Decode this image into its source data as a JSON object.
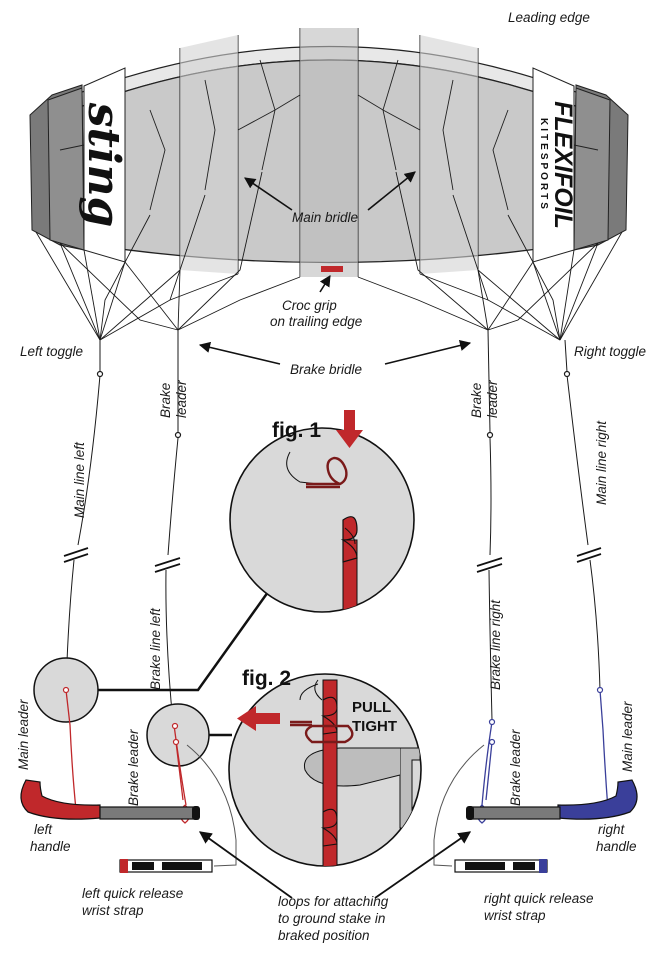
{
  "labels": {
    "leading_edge": "Leading edge",
    "main_bridle": "Main bridle",
    "croc_grip_1": "Croc grip",
    "croc_grip_2": "on trailing edge",
    "left_toggle": "Left toggle",
    "right_toggle": "Right toggle",
    "brake_bridle": "Brake bridle",
    "brake_leader": "Brake",
    "brake_leader_2": "leader",
    "main_line_left": "Main line left",
    "main_line_right": "Main line right",
    "brake_line_left": "Brake line left",
    "brake_line_right": "Brake line right",
    "main_leader": "Main leader",
    "brake_leader_lower": "Brake leader",
    "fig1": "fig. 1",
    "fig2": "fig. 2",
    "pull": "PULL",
    "tight": "TIGHT",
    "left_handle_1": "left",
    "left_handle_2": "handle",
    "right_handle_1": "right",
    "right_handle_2": "handle",
    "left_strap_1": "left quick release",
    "left_strap_2": "wrist strap",
    "right_strap_1": "right quick release",
    "right_strap_2": "wrist strap",
    "loops_1": "loops for attaching",
    "loops_2": "to ground stake in",
    "loops_3": "braked position"
  },
  "logos": {
    "left_brand": "sting",
    "right_brand": "FLEXIFOIL",
    "right_sub": "KITESPORTS"
  },
  "colors": {
    "panel_light": "#cfcfcf",
    "panel_mid": "#bdbdbd",
    "panel_dark": "#8a8a8a",
    "panel_darker": "#6e6e6e",
    "red": "#c0282b",
    "blue": "#3a3f9a",
    "circle_fill": "#d9d9d9"
  },
  "icons": {
    "arrow_down": "red-down-arrow-icon",
    "arrow_left": "red-left-arrow-icon",
    "line_break": "double-slash-icon"
  }
}
